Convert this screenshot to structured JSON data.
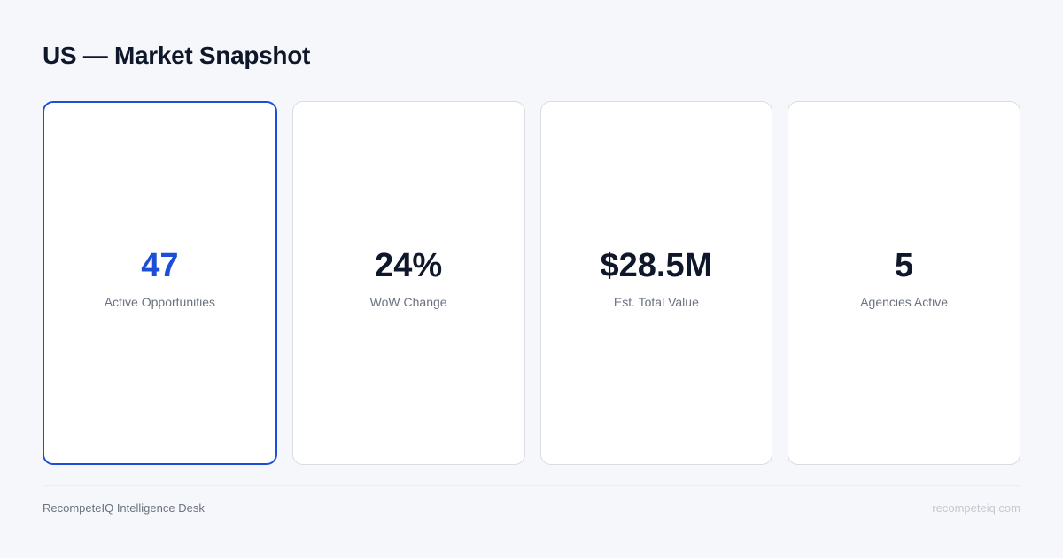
{
  "header": {
    "title": "US — Market Snapshot"
  },
  "colors": {
    "accent": "#1d4ed8",
    "text": "#0f172a",
    "muted": "#6b7280",
    "background": "#f6f7fb"
  },
  "cards": [
    {
      "value": "47",
      "label": "Active Opportunities",
      "highlighted": true
    },
    {
      "value": "24%",
      "label": "WoW Change"
    },
    {
      "value": "$28.5M",
      "label": "Est. Total Value"
    },
    {
      "value": "5",
      "label": "Agencies Active"
    }
  ],
  "footer": {
    "brand": "RecompeteIQ Intelligence Desk",
    "url": "recompeteiq.com"
  }
}
